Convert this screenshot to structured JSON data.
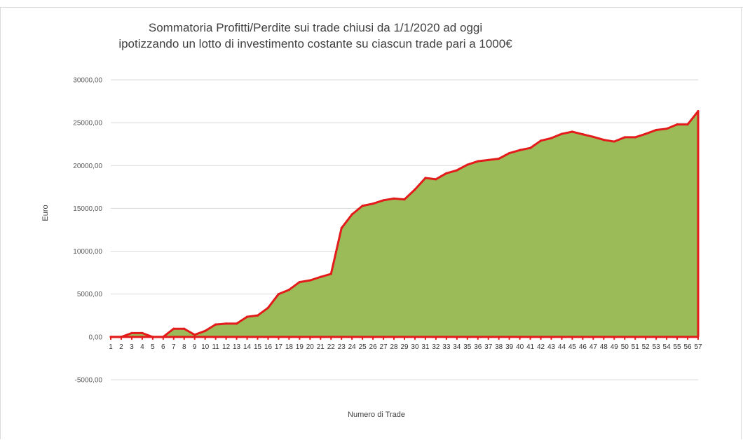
{
  "chart_data": {
    "type": "area",
    "title_line1": "Sommatoria Profitti/Perdite sui trade chiusi da 1/1/2020 ad oggi",
    "title_line2": "ipotizzando un lotto di investimento costante su ciascun trade pari a 1000€",
    "xlabel": "Numero di Trade",
    "ylabel": "Euro",
    "ylim": [
      -5000,
      30000
    ],
    "y_ticks": [
      -5000,
      0,
      5000,
      10000,
      15000,
      20000,
      25000,
      30000
    ],
    "y_tick_labels": [
      "-5000,00",
      "0,00",
      "5000,00",
      "10000,00",
      "15000,00",
      "20000,00",
      "25000,00",
      "30000,00"
    ],
    "grid": true,
    "legend": "none",
    "colors": {
      "fill": "#9bbb59",
      "line": "#e31b1b",
      "grid": "#d9d9d9"
    },
    "x": [
      1,
      2,
      3,
      4,
      5,
      6,
      7,
      8,
      9,
      10,
      11,
      12,
      13,
      14,
      15,
      16,
      17,
      18,
      19,
      20,
      21,
      22,
      23,
      24,
      25,
      26,
      27,
      28,
      29,
      30,
      31,
      32,
      33,
      34,
      35,
      36,
      37,
      38,
      39,
      40,
      41,
      42,
      43,
      44,
      45,
      46,
      47,
      48,
      49,
      50,
      51,
      52,
      53,
      54,
      55,
      56,
      57
    ],
    "values": [
      0,
      0,
      450,
      450,
      0,
      0,
      950,
      950,
      250,
      700,
      1450,
      1550,
      1550,
      2350,
      2500,
      3400,
      5000,
      5500,
      6400,
      6600,
      7000,
      7350,
      12700,
      14300,
      15300,
      15550,
      15950,
      16150,
      16050,
      17200,
      18550,
      18400,
      19100,
      19450,
      20100,
      20500,
      20650,
      20800,
      21450,
      21800,
      22050,
      22900,
      23200,
      23700,
      23950,
      23650,
      23350,
      23000,
      22800,
      23300,
      23300,
      23700,
      24150,
      24300,
      24800,
      24800,
      26350
    ]
  }
}
